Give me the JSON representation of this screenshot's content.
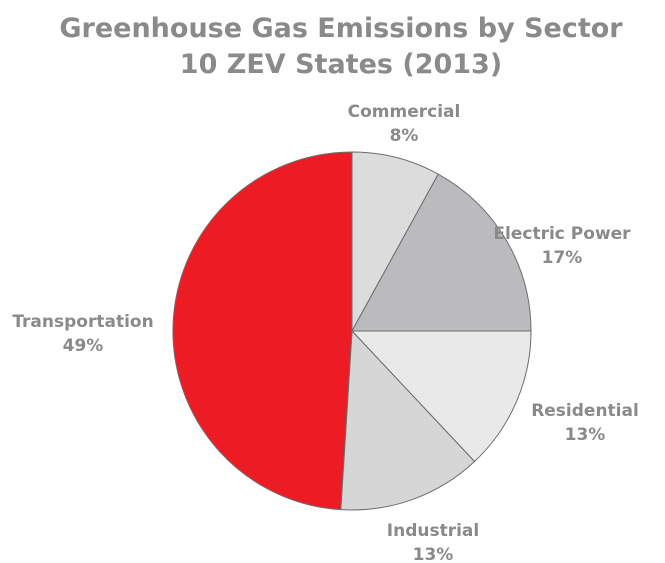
{
  "chart_data": {
    "type": "pie",
    "title_lines": [
      "Greenhouse Gas Emissions by Sector",
      "10 ZEV States (2013)"
    ],
    "labels": [
      "Commercial",
      "Electric Power",
      "Residential",
      "Industrial",
      "Transportation"
    ],
    "values": [
      8,
      17,
      13,
      13,
      49
    ],
    "value_labels": [
      "8%",
      "17%",
      "13%",
      "13%",
      "49%"
    ],
    "colors": [
      "#dcdcdd",
      "#bbbbbe",
      "#e9e9ea",
      "#d6d6d7",
      "#ed1c24"
    ],
    "start_angle": "12 o'clock",
    "direction": "clockwise",
    "legend": "none"
  }
}
